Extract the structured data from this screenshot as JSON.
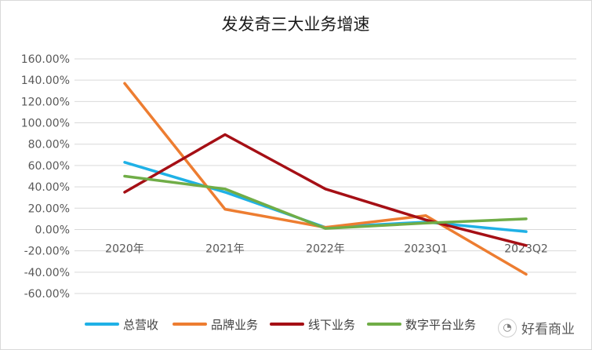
{
  "chart_data": {
    "type": "line",
    "title": "发发奇三大业务增速",
    "categories": [
      "2020年",
      "2021年",
      "2022年",
      "2023Q1",
      "2023Q2"
    ],
    "yticks": [
      "160.00%",
      "140.00%",
      "120.00%",
      "100.00%",
      "80.00%",
      "60.00%",
      "40.00%",
      "20.00%",
      "0.00%",
      "-20.00%",
      "-40.00%",
      "-60.00%"
    ],
    "ylim": [
      -0.6,
      1.6
    ],
    "grid": true,
    "legend_position": "bottom",
    "series": [
      {
        "name": "总营收",
        "color": "#1fb1e6",
        "values": [
          0.63,
          0.35,
          0.02,
          0.07,
          -0.02
        ]
      },
      {
        "name": "品牌业务",
        "color": "#ed7d31",
        "values": [
          1.37,
          0.19,
          0.02,
          0.13,
          -0.42
        ]
      },
      {
        "name": "线下业务",
        "color": "#a50f15",
        "values": [
          0.35,
          0.89,
          0.38,
          0.09,
          -0.15
        ]
      },
      {
        "name": "数字平台业务",
        "color": "#70ad47",
        "values": [
          0.5,
          0.38,
          0.01,
          0.06,
          0.1
        ]
      }
    ]
  },
  "watermark": {
    "text": "好看商业",
    "icon": "wechat-icon"
  }
}
